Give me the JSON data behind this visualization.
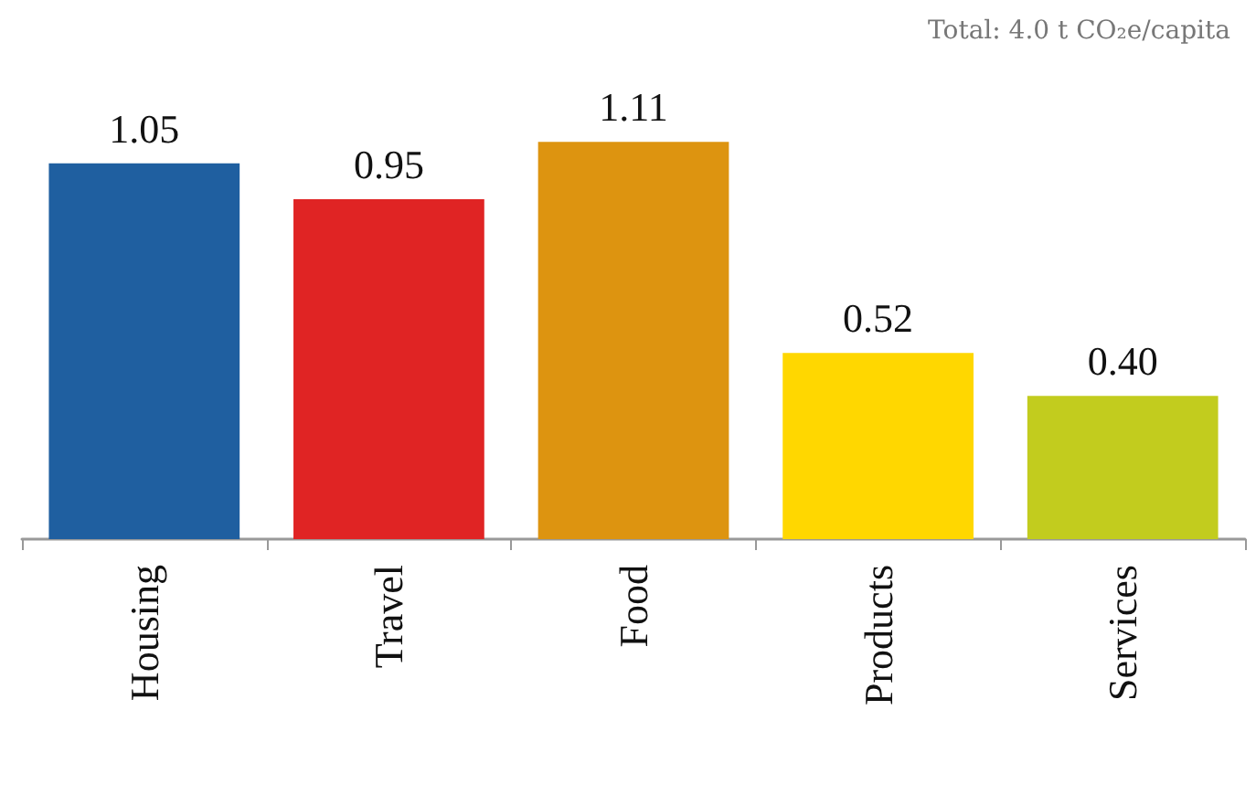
{
  "chart_data": {
    "type": "bar",
    "categories": [
      "Housing",
      "Travel",
      "Food",
      "Products",
      "Services"
    ],
    "values": [
      1.05,
      0.95,
      1.11,
      0.52,
      0.4
    ],
    "colors": [
      "#1f5fa0",
      "#e02424",
      "#dd9410",
      "#ffd700",
      "#c2cc1e"
    ],
    "value_labels": [
      "1.05",
      "0.95",
      "1.11",
      "0.52",
      "0.40"
    ],
    "annotations": [
      "Total: 4.0 t CO₂e/capita"
    ]
  }
}
